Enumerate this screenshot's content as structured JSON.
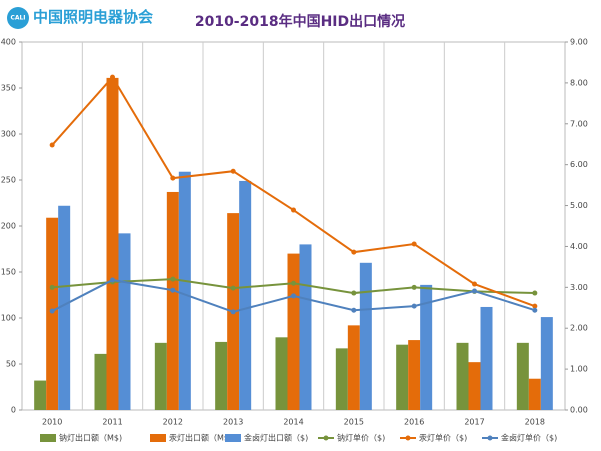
{
  "chart_data": {
    "type": "bar",
    "logo": "中国照明电器协会",
    "logo_mark": "CALI",
    "title": "2010-2018年中国HID出口情况",
    "categories": [
      "2010",
      "2011",
      "2012",
      "2013",
      "2014",
      "2015",
      "2016",
      "2017",
      "2018"
    ],
    "ylim": [
      0,
      400
    ],
    "yticks": [
      0,
      50,
      100,
      150,
      200,
      250,
      300,
      350,
      400
    ],
    "y2lim": [
      0,
      9
    ],
    "y2ticks": [
      {
        "value": 0,
        "label": "0.00"
      },
      {
        "value": 1,
        "label": "1.00"
      },
      {
        "value": 2,
        "label": "2.00"
      },
      {
        "value": 3,
        "label": "3.00"
      },
      {
        "value": 4,
        "label": "4.00"
      },
      {
        "value": 5,
        "label": "5.00"
      },
      {
        "value": 6,
        "label": "6.00"
      },
      {
        "value": 7,
        "label": "7.00"
      },
      {
        "value": 8,
        "label": "8.00"
      },
      {
        "value": 9,
        "label": "9.00"
      }
    ],
    "series": [
      {
        "name": "钠灯出口额（M$)",
        "type": "bar",
        "color": "#77933c",
        "values": [
          32,
          61,
          73,
          74,
          79,
          67,
          71,
          73,
          73
        ]
      },
      {
        "name": "汞灯出口额（M$)",
        "type": "bar",
        "color": "#e46c0a",
        "values": [
          209,
          361,
          237,
          214,
          170,
          92,
          76,
          52,
          34
        ]
      },
      {
        "name": "金卤灯出口额（$)",
        "type": "bar",
        "color": "#558ed5",
        "values": [
          222,
          192,
          259,
          249,
          180,
          160,
          136,
          112,
          101
        ]
      },
      {
        "name": "钠灯单价（$)",
        "type": "line",
        "axis": "y2",
        "color": "#77933c",
        "values": [
          3.0,
          3.13,
          3.2,
          2.98,
          3.1,
          2.86,
          3.0,
          2.9,
          2.86
        ]
      },
      {
        "name": "汞灯单价（$)",
        "type": "line",
        "axis": "y2",
        "color": "#e46c0a",
        "values": [
          6.48,
          8.14,
          5.67,
          5.84,
          4.89,
          3.86,
          4.06,
          3.08,
          2.54
        ]
      },
      {
        "name": "金卤灯单价（$)",
        "type": "line",
        "axis": "y2",
        "color": "#4f81bd",
        "values": [
          2.42,
          3.18,
          2.93,
          2.4,
          2.79,
          2.44,
          2.54,
          2.91,
          2.44
        ]
      }
    ]
  }
}
